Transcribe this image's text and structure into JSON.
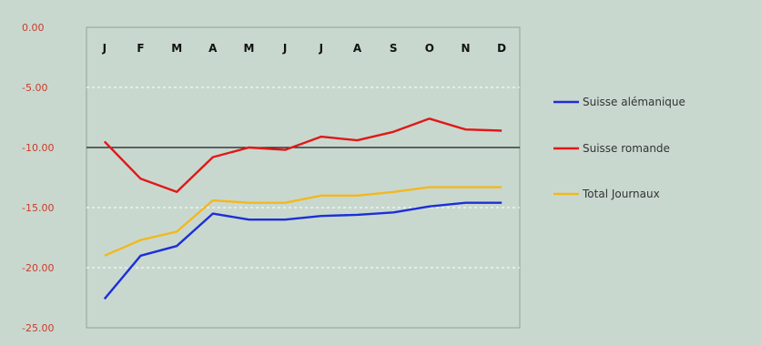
{
  "chart_data": {
    "type": "line",
    "categories": [
      "J",
      "F",
      "M",
      "A",
      "M",
      "J",
      "J",
      "A",
      "S",
      "O",
      "N",
      "D"
    ],
    "y_ticks": [
      "0.00",
      "-5.00",
      "-10.00",
      "-15.00",
      "-20.00",
      "-25.00"
    ],
    "ylim": [
      -25,
      0
    ],
    "y_reference_line": -10,
    "grid": true,
    "legend_position": "right",
    "series": [
      {
        "name": "Suisse alémanique",
        "color": "#1c2fd6",
        "values": [
          -22.6,
          -19.0,
          -18.2,
          -15.5,
          -16.0,
          -16.0,
          -15.7,
          -15.6,
          -15.4,
          -14.9,
          -14.6,
          -14.6
        ]
      },
      {
        "name": "Suisse romande",
        "color": "#e01818",
        "values": [
          -9.5,
          -12.6,
          -13.7,
          -10.8,
          -10.0,
          -10.2,
          -9.1,
          -9.4,
          -8.7,
          -7.6,
          -8.5,
          -8.6
        ]
      },
      {
        "name": "Total Journaux",
        "color": "#f2b820",
        "values": [
          -19.0,
          -17.7,
          -17.0,
          -14.4,
          -14.6,
          -14.6,
          -14.0,
          -14.0,
          -13.7,
          -13.3,
          -13.3,
          -13.3
        ]
      }
    ]
  }
}
